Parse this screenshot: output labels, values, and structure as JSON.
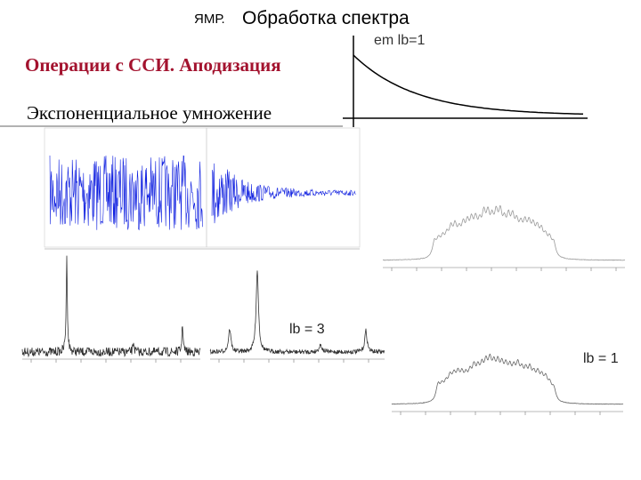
{
  "header": {
    "prefix": "ЯМР.",
    "title": "Обработка спектра"
  },
  "subtitle": "Операции с ССИ. Аподизация",
  "section": "Экспоненциальное умножение",
  "labels": {
    "window": "em lb=1",
    "lb3": "lb = 3",
    "lb1": "lb = 1"
  }
}
